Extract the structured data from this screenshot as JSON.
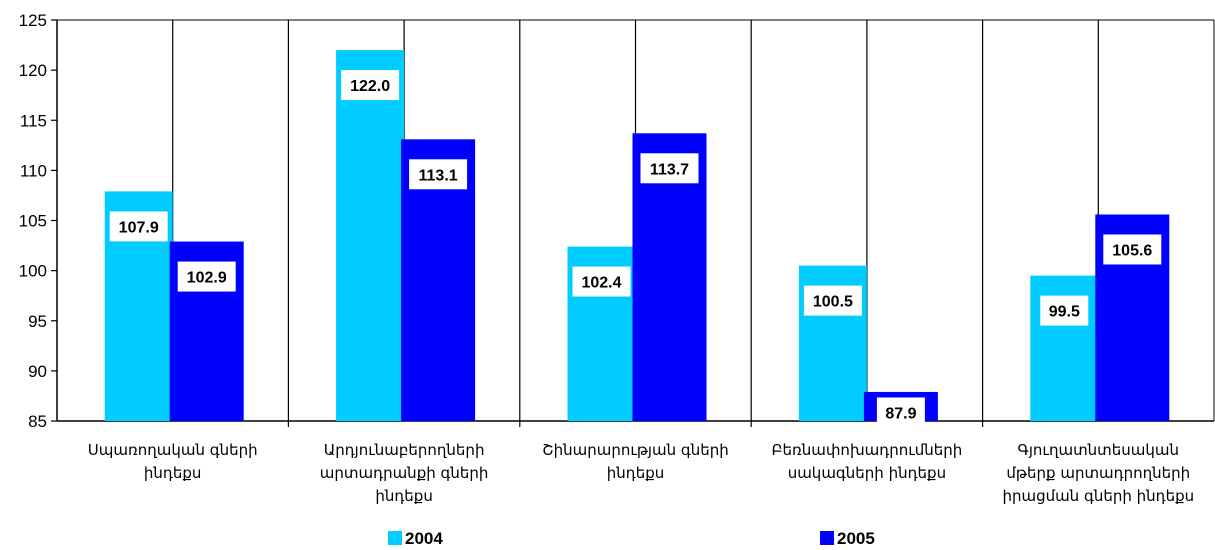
{
  "chart_data": {
    "type": "bar",
    "categories": [
      [
        "Սպառողական գների",
        "ինդեքս"
      ],
      [
        "Արդյունաբերողների",
        "արտադրանքի գների",
        "ինդեքս"
      ],
      [
        "Շինարարության գների",
        "ինդեքս"
      ],
      [
        "Բեռնափոխադրումների",
        "սակագների ինդեքս"
      ],
      [
        "Գյուղատնտեսական",
        "մթերք արտադրողների",
        "իրացման գների ինդեքս"
      ]
    ],
    "series": [
      {
        "name": "2004",
        "values": [
          107.9,
          122.0,
          102.4,
          100.5,
          99.5
        ],
        "color": "#00ccff"
      },
      {
        "name": "2005",
        "values": [
          102.9,
          113.1,
          113.7,
          87.9,
          105.6
        ],
        "color": "#0000ff"
      }
    ],
    "value_labels": [
      [
        "107.9",
        "122.0",
        "102.4",
        "100.5",
        "99.5"
      ],
      [
        "102.9",
        "113.1",
        "113.7",
        "87.9",
        "105.6"
      ]
    ],
    "y_ticks": [
      "85",
      "90",
      "95",
      "100",
      "105",
      "110",
      "115",
      "120",
      "125"
    ],
    "ylim": [
      85,
      125
    ],
    "grid": "vertical-separators",
    "legend_placement": "bottom"
  }
}
